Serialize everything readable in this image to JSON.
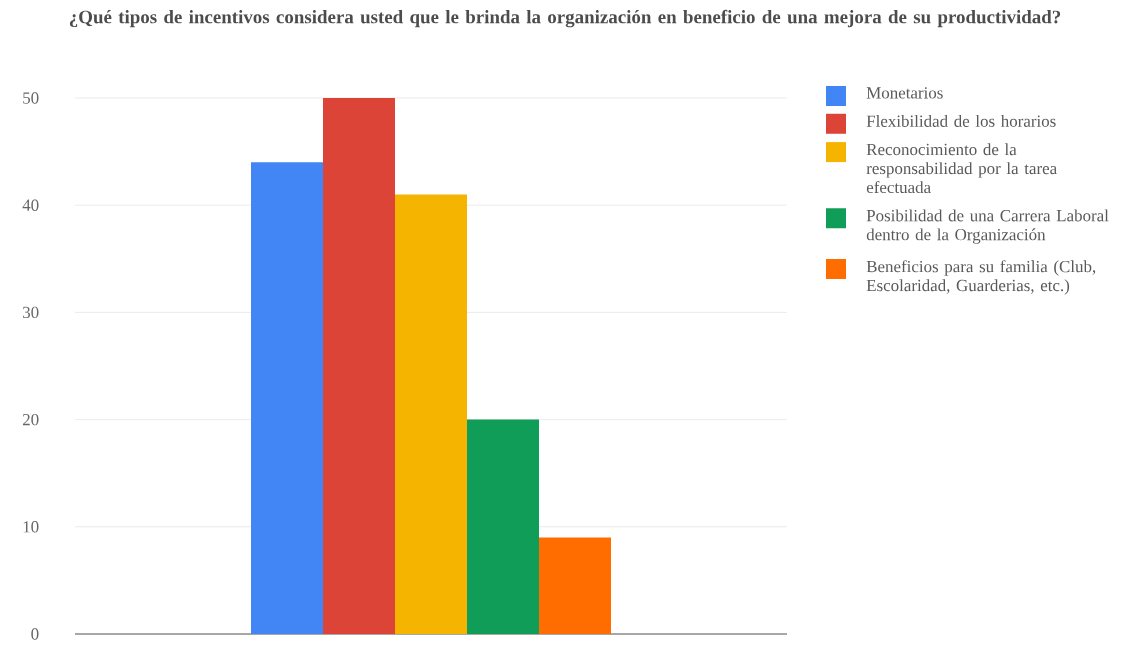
{
  "chart_data": {
    "type": "bar",
    "title": "¿Qué tipos de incentivos considera usted que le brinda la organización en beneficio de una mejora de su productividad?",
    "categories": [
      null
    ],
    "series": [
      {
        "name": "Monetarios",
        "color": "#4285f4",
        "values": [
          44
        ]
      },
      {
        "name": "Flexibilidad de los horarios",
        "color": "#db4437",
        "values": [
          50
        ]
      },
      {
        "name": "Reconocimiento de la responsabilidad por la tarea efectuada",
        "color": "#f4b400",
        "values": [
          41
        ]
      },
      {
        "name": "Posibilidad de una Carrera Laboral dentro de la Organización",
        "color": "#0f9d58",
        "values": [
          20
        ]
      },
      {
        "name": "Beneficios para su familia (Club, Escolaridad, Guarderias, etc.)",
        "color": "#ff6d00",
        "values": [
          9
        ]
      }
    ],
    "ylim": [
      0,
      50
    ],
    "yticks": [
      0,
      10,
      20,
      30,
      40,
      50
    ],
    "grid": "y",
    "legend": "right"
  }
}
